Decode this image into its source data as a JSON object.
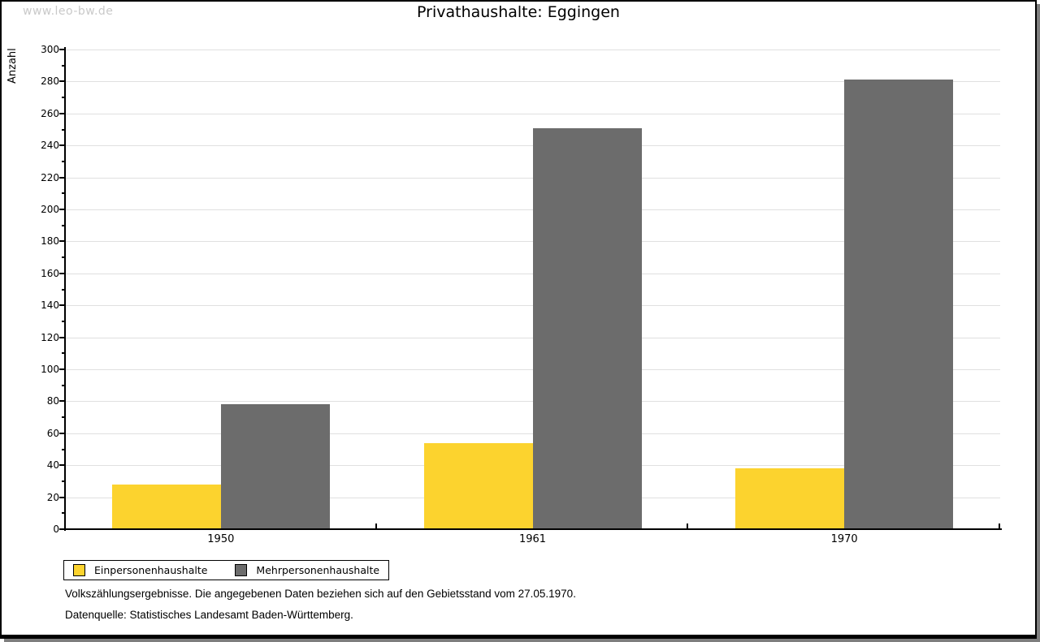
{
  "page": {
    "watermark": "www.leo-bw.de"
  },
  "chart_data": {
    "type": "bar",
    "title": "Privathaushalte: Eggingen",
    "ylabel": "Anzahl",
    "xlabel": "",
    "categories": [
      "1950",
      "1961",
      "1970"
    ],
    "series": [
      {
        "name": "Einpersonenhaushalte",
        "color": "#fcd32e",
        "values": [
          28,
          54,
          38
        ]
      },
      {
        "name": "Mehrpersonenhaushalte",
        "color": "#6c6c6c",
        "values": [
          78,
          251,
          281
        ]
      }
    ],
    "ylim": [
      0,
      300
    ],
    "y_major_step": 20,
    "y_minor_step": 10,
    "grid": true,
    "gridline_color": "#e0e0e0",
    "legend_position": "bottom-left"
  },
  "footer": {
    "line1": "Volkszählungsergebnisse. Die angegebenen Daten beziehen sich auf den Gebietsstand vom 27.05.1970.",
    "line2": "Datenquelle: Statistisches Landesamt Baden-Württemberg."
  }
}
